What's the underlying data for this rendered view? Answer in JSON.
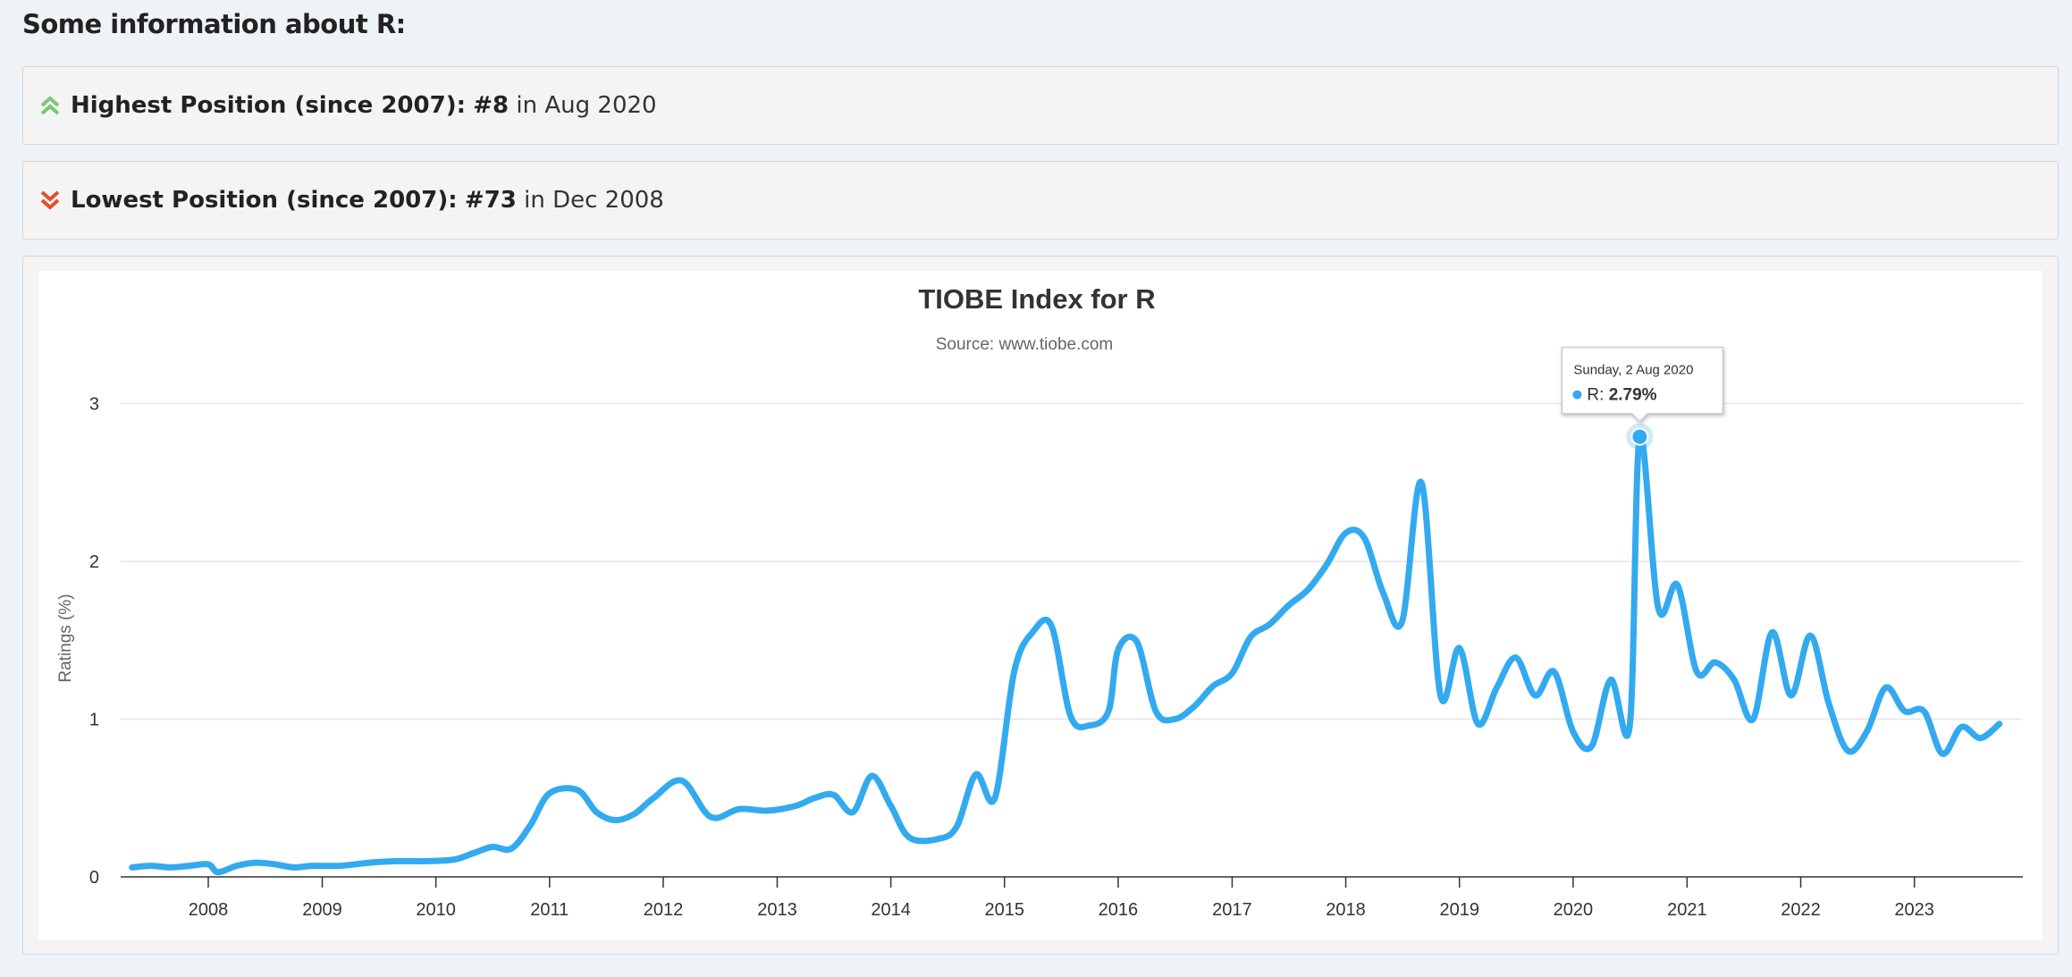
{
  "heading": "Some information about R:",
  "highest": {
    "label": "Highest Position (since 2007):",
    "position": "#8",
    "connector": "in",
    "date": "Aug 2020",
    "icon": "double-chevron-up-icon",
    "color": "#7cc576"
  },
  "lowest": {
    "label": "Lowest Position (since 2007):",
    "position": "#73",
    "connector": "in",
    "date": "Dec 2008",
    "icon": "double-chevron-down-icon",
    "color": "#e2512a"
  },
  "chart_data": {
    "type": "line",
    "title": "TIOBE Index for R",
    "subtitle": "Source: www.tiobe.com",
    "ylabel": "Ratings (%)",
    "xlabel": "",
    "ylim": [
      0,
      3
    ],
    "yticks": [
      "0",
      "1",
      "2",
      "3"
    ],
    "xticks": [
      "2008",
      "2009",
      "2010",
      "2011",
      "2012",
      "2013",
      "2014",
      "2015",
      "2016",
      "2017",
      "2018",
      "2019",
      "2020",
      "2021",
      "2022",
      "2023"
    ],
    "grid": true,
    "line_color": "#33aaf0",
    "series": [
      {
        "name": "R",
        "points": [
          [
            "2007-05-01",
            0.06
          ],
          [
            "2007-07-01",
            0.07
          ],
          [
            "2007-09-01",
            0.06
          ],
          [
            "2007-11-01",
            0.07
          ],
          [
            "2008-01-01",
            0.08
          ],
          [
            "2008-02-01",
            0.03
          ],
          [
            "2008-04-01",
            0.07
          ],
          [
            "2008-06-01",
            0.09
          ],
          [
            "2008-08-01",
            0.08
          ],
          [
            "2008-10-01",
            0.06
          ],
          [
            "2008-12-01",
            0.07
          ],
          [
            "2009-03-01",
            0.07
          ],
          [
            "2009-06-01",
            0.09
          ],
          [
            "2009-09-01",
            0.1
          ],
          [
            "2009-12-01",
            0.1
          ],
          [
            "2010-03-01",
            0.11
          ],
          [
            "2010-05-01",
            0.15
          ],
          [
            "2010-07-01",
            0.19
          ],
          [
            "2010-09-01",
            0.18
          ],
          [
            "2010-11-01",
            0.33
          ],
          [
            "2011-01-01",
            0.53
          ],
          [
            "2011-04-01",
            0.55
          ],
          [
            "2011-06-01",
            0.41
          ],
          [
            "2011-08-01",
            0.36
          ],
          [
            "2011-10-01",
            0.4
          ],
          [
            "2011-12-01",
            0.5
          ],
          [
            "2012-03-01",
            0.61
          ],
          [
            "2012-06-01",
            0.38
          ],
          [
            "2012-09-01",
            0.43
          ],
          [
            "2012-12-01",
            0.42
          ],
          [
            "2013-03-01",
            0.45
          ],
          [
            "2013-05-01",
            0.5
          ],
          [
            "2013-07-01",
            0.52
          ],
          [
            "2013-09-01",
            0.41
          ],
          [
            "2013-11-01",
            0.64
          ],
          [
            "2014-01-01",
            0.45
          ],
          [
            "2014-03-01",
            0.25
          ],
          [
            "2014-06-01",
            0.24
          ],
          [
            "2014-08-01",
            0.32
          ],
          [
            "2014-10-01",
            0.65
          ],
          [
            "2014-12-01",
            0.5
          ],
          [
            "2015-02-01",
            1.3
          ],
          [
            "2015-04-01",
            1.55
          ],
          [
            "2015-06-01",
            1.59
          ],
          [
            "2015-08-01",
            1.02
          ],
          [
            "2015-10-01",
            0.96
          ],
          [
            "2015-12-01",
            1.05
          ],
          [
            "2016-01-01",
            1.44
          ],
          [
            "2016-03-01",
            1.49
          ],
          [
            "2016-05-01",
            1.05
          ],
          [
            "2016-07-01",
            1.0
          ],
          [
            "2016-09-01",
            1.08
          ],
          [
            "2016-11-01",
            1.21
          ],
          [
            "2017-01-01",
            1.29
          ],
          [
            "2017-03-01",
            1.52
          ],
          [
            "2017-05-01",
            1.6
          ],
          [
            "2017-07-01",
            1.72
          ],
          [
            "2017-09-01",
            1.82
          ],
          [
            "2017-11-01",
            1.98
          ],
          [
            "2018-01-01",
            2.18
          ],
          [
            "2018-03-01",
            2.15
          ],
          [
            "2018-05-01",
            1.8
          ],
          [
            "2018-07-01",
            1.62
          ],
          [
            "2018-09-01",
            2.5
          ],
          [
            "2018-11-01",
            1.15
          ],
          [
            "2019-01-01",
            1.45
          ],
          [
            "2019-03-01",
            0.97
          ],
          [
            "2019-05-01",
            1.2
          ],
          [
            "2019-07-01",
            1.39
          ],
          [
            "2019-09-01",
            1.15
          ],
          [
            "2019-11-01",
            1.3
          ],
          [
            "2020-01-01",
            0.92
          ],
          [
            "2020-03-01",
            0.83
          ],
          [
            "2020-05-01",
            1.25
          ],
          [
            "2020-07-01",
            0.96
          ],
          [
            "2020-08-02",
            2.79
          ],
          [
            "2020-10-01",
            1.7
          ],
          [
            "2020-12-01",
            1.85
          ],
          [
            "2021-02-01",
            1.3
          ],
          [
            "2021-04-01",
            1.36
          ],
          [
            "2021-06-01",
            1.25
          ],
          [
            "2021-08-01",
            1.0
          ],
          [
            "2021-10-01",
            1.55
          ],
          [
            "2021-12-01",
            1.15
          ],
          [
            "2022-02-01",
            1.53
          ],
          [
            "2022-04-01",
            1.1
          ],
          [
            "2022-06-01",
            0.8
          ],
          [
            "2022-08-01",
            0.92
          ],
          [
            "2022-10-01",
            1.2
          ],
          [
            "2022-12-01",
            1.05
          ],
          [
            "2023-02-01",
            1.05
          ],
          [
            "2023-04-01",
            0.78
          ],
          [
            "2023-06-01",
            0.95
          ],
          [
            "2023-08-01",
            0.88
          ],
          [
            "2023-10-01",
            0.97
          ]
        ]
      }
    ],
    "tooltip": {
      "date": "Sunday, 2 Aug 2020",
      "series": "R",
      "value": "2.79%"
    }
  }
}
